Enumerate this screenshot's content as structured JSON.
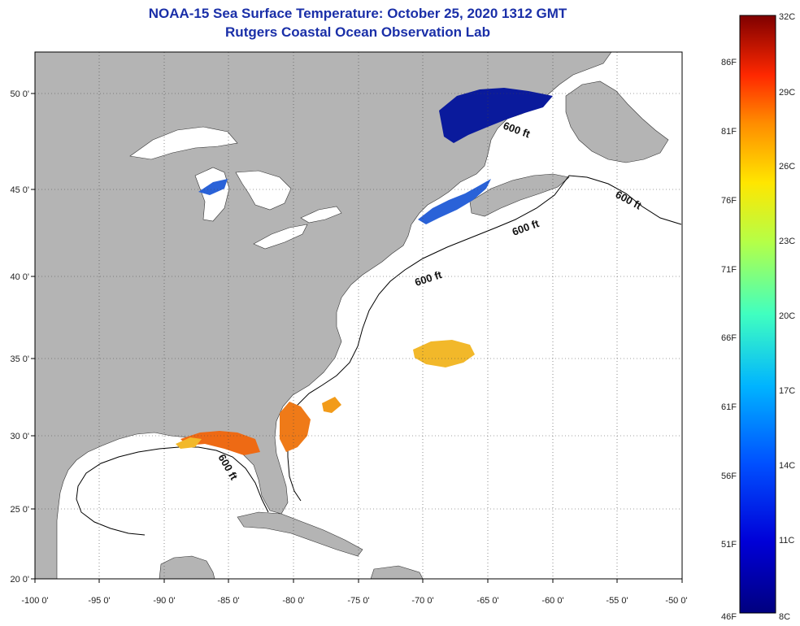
{
  "title": {
    "line1": "NOAA-15 Sea Surface Temperature:  October 25, 2020 1312 GMT",
    "line2": "Rutgers Coastal Ocean Observation Lab"
  },
  "axes": {
    "lat_labels": [
      "50 0'",
      "45 0'",
      "40 0'",
      "35 0'",
      "30 0'",
      "25 0'",
      "20 0'"
    ],
    "lon_labels": [
      "-100 0'",
      "-95 0'",
      "-90 0'",
      "-85 0'",
      "-80 0'",
      "-75 0'",
      "-70 0'",
      "-65 0'",
      "-60 0'",
      "-55 0'",
      "-50 0'"
    ]
  },
  "contour_labels": [
    "600 ft",
    "600 ft",
    "600 ft",
    "600 ft",
    "600 ft"
  ],
  "colorbar": {
    "fahrenheit": [
      "86F",
      "81F",
      "76F",
      "71F",
      "66F",
      "61F",
      "56F",
      "51F",
      "46F"
    ],
    "celsius": [
      "32C",
      "29C",
      "26C",
      "23C",
      "20C",
      "17C",
      "14C",
      "11C",
      "8C"
    ]
  },
  "colors": {
    "land": "#b4b4b4",
    "ocean": "#ffffff",
    "title": "#1a2fa8",
    "cold": "#00007f",
    "warm": "#f29b1a",
    "hot": "#ee6a14"
  }
}
